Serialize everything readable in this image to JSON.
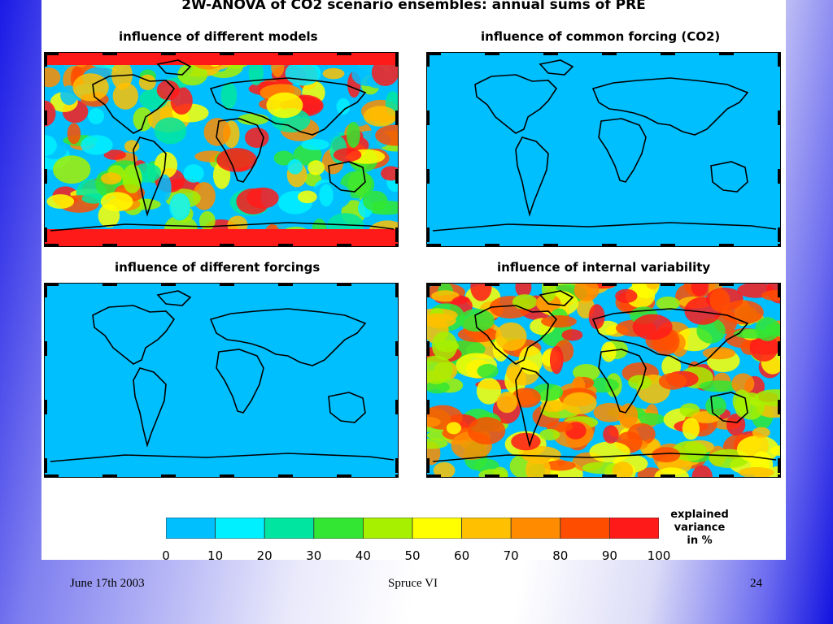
{
  "figure": {
    "title": "2W-ANOVA of CO2 scenario ensembles: annual sums of PRE"
  },
  "panels": [
    {
      "title": "influence of different models",
      "pattern": "high"
    },
    {
      "title": "influence of common forcing (CO2)",
      "pattern": "flat"
    },
    {
      "title": "influence of different forcings",
      "pattern": "flat"
    },
    {
      "title": "influence of internal variability",
      "pattern": "very-high"
    }
  ],
  "legend": {
    "ticks": [
      "0",
      "10",
      "20",
      "30",
      "40",
      "50",
      "60",
      "70",
      "80",
      "90",
      "100"
    ],
    "colors": [
      "#00bfff",
      "#00f0ff",
      "#00e6a0",
      "#33e633",
      "#a6f000",
      "#ffff00",
      "#ffc000",
      "#ff8c00",
      "#ff4d00",
      "#ff1a1a"
    ],
    "title_lines": [
      "explained",
      "variance",
      "in %"
    ]
  },
  "footer": {
    "date": "June 17th 2003",
    "title": "Spruce  VI",
    "page": "24"
  }
}
